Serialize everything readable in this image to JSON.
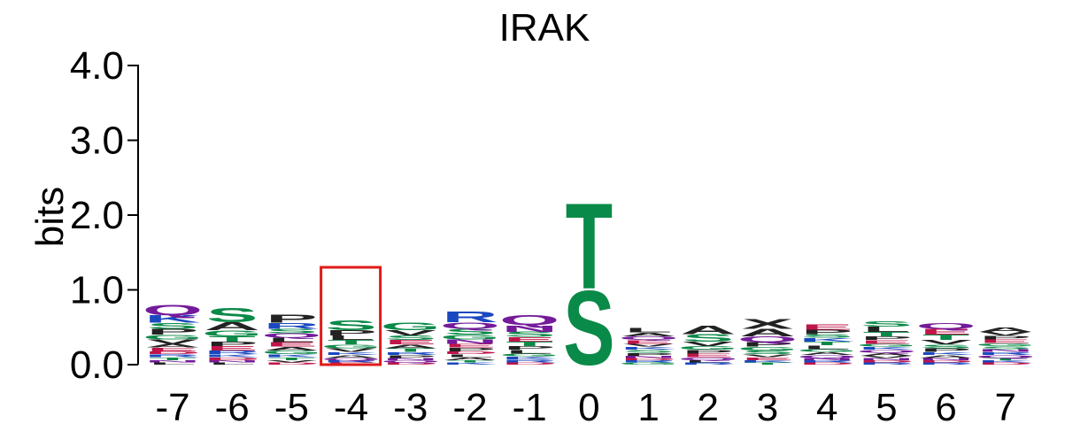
{
  "chart_data": {
    "type": "sequence-logo",
    "title": "IRAK",
    "ylabel": "bits",
    "xlabel": "",
    "ylim": [
      0,
      4.0
    ],
    "y_ticks": [
      {
        "value": 0,
        "label": "0.0"
      },
      {
        "value": 1,
        "label": "1.0"
      },
      {
        "value": 2,
        "label": "2.0"
      },
      {
        "value": 3,
        "label": "3.0"
      },
      {
        "value": 4,
        "label": "4.0"
      }
    ],
    "colors": {
      "polar": "#0a8a48",
      "hydrophobic": "#222222",
      "basic": "#1a48c0",
      "acidic": "#c0154a",
      "amide": "#741a9a",
      "highlight": "#e01b1b"
    },
    "highlight_position": "-4",
    "positions": [
      {
        "label": "-7",
        "letters": [
          {
            "aa": "Q",
            "bits": 0.14,
            "color": "amide"
          },
          {
            "aa": "K",
            "bits": 0.1,
            "color": "basic"
          },
          {
            "aa": "P",
            "bits": 0.08,
            "color": "hydrophobic"
          },
          {
            "aa": "S",
            "bits": 0.08,
            "color": "polar"
          },
          {
            "aa": "V",
            "bits": 0.06,
            "color": "hydrophobic"
          },
          {
            "aa": "G",
            "bits": 0.06,
            "color": "polar"
          },
          {
            "aa": "E",
            "bits": 0.05,
            "color": "acidic"
          },
          {
            "aa": "A",
            "bits": 0.05,
            "color": "hydrophobic"
          },
          {
            "aa": "T",
            "bits": 0.04,
            "color": "polar"
          },
          {
            "aa": "R",
            "bits": 0.04,
            "color": "basic"
          },
          {
            "aa": "D",
            "bits": 0.04,
            "color": "acidic"
          },
          {
            "aa": "L",
            "bits": 0.03,
            "color": "hydrophobic"
          },
          {
            "aa": "N",
            "bits": 0.03,
            "color": "amide"
          }
        ]
      },
      {
        "label": "-6",
        "letters": [
          {
            "aa": "S",
            "bits": 0.2,
            "color": "polar"
          },
          {
            "aa": "A",
            "bits": 0.11,
            "color": "hydrophobic"
          },
          {
            "aa": "G",
            "bits": 0.08,
            "color": "polar"
          },
          {
            "aa": "T",
            "bits": 0.07,
            "color": "polar"
          },
          {
            "aa": "E",
            "bits": 0.06,
            "color": "acidic"
          },
          {
            "aa": "P",
            "bits": 0.06,
            "color": "hydrophobic"
          },
          {
            "aa": "R",
            "bits": 0.05,
            "color": "basic"
          },
          {
            "aa": "D",
            "bits": 0.04,
            "color": "acidic"
          },
          {
            "aa": "K",
            "bits": 0.04,
            "color": "basic"
          },
          {
            "aa": "L",
            "bits": 0.03,
            "color": "hydrophobic"
          },
          {
            "aa": "N",
            "bits": 0.03,
            "color": "amide"
          }
        ]
      },
      {
        "label": "-5",
        "letters": [
          {
            "aa": "P",
            "bits": 0.11,
            "color": "hydrophobic"
          },
          {
            "aa": "R",
            "bits": 0.08,
            "color": "basic"
          },
          {
            "aa": "E",
            "bits": 0.06,
            "color": "acidic"
          },
          {
            "aa": "L",
            "bits": 0.06,
            "color": "hydrophobic"
          },
          {
            "aa": "Q",
            "bits": 0.06,
            "color": "amide"
          },
          {
            "aa": "S",
            "bits": 0.06,
            "color": "polar"
          },
          {
            "aa": "G",
            "bits": 0.05,
            "color": "polar"
          },
          {
            "aa": "A",
            "bits": 0.05,
            "color": "hydrophobic"
          },
          {
            "aa": "T",
            "bits": 0.04,
            "color": "polar"
          },
          {
            "aa": "K",
            "bits": 0.04,
            "color": "basic"
          },
          {
            "aa": "D",
            "bits": 0.03,
            "color": "acidic"
          },
          {
            "aa": "V",
            "bits": 0.03,
            "color": "hydrophobic"
          }
        ]
      },
      {
        "label": "-4",
        "letters": [
          {
            "aa": "S",
            "bits": 0.13,
            "color": "polar"
          },
          {
            "aa": "P",
            "bits": 0.07,
            "color": "hydrophobic"
          },
          {
            "aa": "T",
            "bits": 0.06,
            "color": "polar"
          },
          {
            "aa": "L",
            "bits": 0.06,
            "color": "hydrophobic"
          },
          {
            "aa": "V",
            "bits": 0.05,
            "color": "hydrophobic"
          },
          {
            "aa": "G",
            "bits": 0.05,
            "color": "polar"
          },
          {
            "aa": "A",
            "bits": 0.04,
            "color": "hydrophobic"
          },
          {
            "aa": "K",
            "bits": 0.04,
            "color": "basic"
          },
          {
            "aa": "E",
            "bits": 0.03,
            "color": "acidic"
          },
          {
            "aa": "R",
            "bits": 0.03,
            "color": "basic"
          },
          {
            "aa": "Q",
            "bits": 0.03,
            "color": "amide"
          }
        ]
      },
      {
        "label": "-3",
        "letters": [
          {
            "aa": "G",
            "bits": 0.1,
            "color": "polar"
          },
          {
            "aa": "V",
            "bits": 0.07,
            "color": "hydrophobic"
          },
          {
            "aa": "E",
            "bits": 0.06,
            "color": "acidic"
          },
          {
            "aa": "S",
            "bits": 0.06,
            "color": "polar"
          },
          {
            "aa": "T",
            "bits": 0.05,
            "color": "polar"
          },
          {
            "aa": "A",
            "bits": 0.05,
            "color": "hydrophobic"
          },
          {
            "aa": "P",
            "bits": 0.04,
            "color": "hydrophobic"
          },
          {
            "aa": "R",
            "bits": 0.04,
            "color": "basic"
          },
          {
            "aa": "D",
            "bits": 0.03,
            "color": "acidic"
          },
          {
            "aa": "Q",
            "bits": 0.03,
            "color": "amide"
          },
          {
            "aa": "N",
            "bits": 0.03,
            "color": "amide"
          }
        ]
      },
      {
        "label": "-2",
        "letters": [
          {
            "aa": "R",
            "bits": 0.15,
            "color": "basic"
          },
          {
            "aa": "Q",
            "bits": 0.09,
            "color": "amide"
          },
          {
            "aa": "S",
            "bits": 0.08,
            "color": "polar"
          },
          {
            "aa": "N",
            "bits": 0.06,
            "color": "amide"
          },
          {
            "aa": "G",
            "bits": 0.06,
            "color": "polar"
          },
          {
            "aa": "P",
            "bits": 0.05,
            "color": "hydrophobic"
          },
          {
            "aa": "E",
            "bits": 0.05,
            "color": "acidic"
          },
          {
            "aa": "A",
            "bits": 0.04,
            "color": "hydrophobic"
          },
          {
            "aa": "L",
            "bits": 0.04,
            "color": "hydrophobic"
          },
          {
            "aa": "D",
            "bits": 0.04,
            "color": "acidic"
          },
          {
            "aa": "K",
            "bits": 0.03,
            "color": "basic"
          },
          {
            "aa": "T",
            "bits": 0.03,
            "color": "polar"
          }
        ]
      },
      {
        "label": "-1",
        "letters": [
          {
            "aa": "Q",
            "bits": 0.13,
            "color": "amide"
          },
          {
            "aa": "N",
            "bits": 0.09,
            "color": "amide"
          },
          {
            "aa": "S",
            "bits": 0.07,
            "color": "polar"
          },
          {
            "aa": "T",
            "bits": 0.06,
            "color": "polar"
          },
          {
            "aa": "E",
            "bits": 0.06,
            "color": "acidic"
          },
          {
            "aa": "L",
            "bits": 0.05,
            "color": "hydrophobic"
          },
          {
            "aa": "P",
            "bits": 0.05,
            "color": "hydrophobic"
          },
          {
            "aa": "R",
            "bits": 0.04,
            "color": "basic"
          },
          {
            "aa": "K",
            "bits": 0.04,
            "color": "basic"
          },
          {
            "aa": "G",
            "bits": 0.04,
            "color": "polar"
          },
          {
            "aa": "D",
            "bits": 0.03,
            "color": "acidic"
          }
        ]
      },
      {
        "label": "0",
        "letters": [
          {
            "aa": "T",
            "bits": 1.18,
            "color": "polar"
          },
          {
            "aa": "S",
            "bits": 1.02,
            "color": "polar"
          }
        ]
      },
      {
        "label": "1",
        "letters": [
          {
            "aa": "L",
            "bits": 0.06,
            "color": "hydrophobic"
          },
          {
            "aa": "E",
            "bits": 0.05,
            "color": "acidic"
          },
          {
            "aa": "Q",
            "bits": 0.05,
            "color": "amide"
          },
          {
            "aa": "A",
            "bits": 0.05,
            "color": "hydrophobic"
          },
          {
            "aa": "P",
            "bits": 0.04,
            "color": "hydrophobic"
          },
          {
            "aa": "S",
            "bits": 0.04,
            "color": "polar"
          },
          {
            "aa": "K",
            "bits": 0.04,
            "color": "basic"
          },
          {
            "aa": "V",
            "bits": 0.04,
            "color": "hydrophobic"
          },
          {
            "aa": "G",
            "bits": 0.03,
            "color": "polar"
          },
          {
            "aa": "R",
            "bits": 0.03,
            "color": "basic"
          },
          {
            "aa": "D",
            "bits": 0.03,
            "color": "acidic"
          },
          {
            "aa": "N",
            "bits": 0.03,
            "color": "amide"
          }
        ]
      },
      {
        "label": "2",
        "letters": [
          {
            "aa": "A",
            "bits": 0.12,
            "color": "hydrophobic"
          },
          {
            "aa": "S",
            "bits": 0.1,
            "color": "polar"
          },
          {
            "aa": "V",
            "bits": 0.06,
            "color": "hydrophobic"
          },
          {
            "aa": "E",
            "bits": 0.05,
            "color": "acidic"
          },
          {
            "aa": "P",
            "bits": 0.05,
            "color": "hydrophobic"
          },
          {
            "aa": "G",
            "bits": 0.05,
            "color": "polar"
          },
          {
            "aa": "Q",
            "bits": 0.04,
            "color": "amide"
          },
          {
            "aa": "R",
            "bits": 0.03,
            "color": "basic"
          },
          {
            "aa": "L",
            "bits": 0.03,
            "color": "hydrophobic"
          }
        ]
      },
      {
        "label": "3",
        "letters": [
          {
            "aa": "X",
            "bits": 0.13,
            "color": "hydrophobic"
          },
          {
            "aa": "A",
            "bits": 0.1,
            "color": "hydrophobic"
          },
          {
            "aa": "Q",
            "bits": 0.08,
            "color": "amide"
          },
          {
            "aa": "P",
            "bits": 0.06,
            "color": "hydrophobic"
          },
          {
            "aa": "S",
            "bits": 0.05,
            "color": "polar"
          },
          {
            "aa": "G",
            "bits": 0.05,
            "color": "polar"
          },
          {
            "aa": "E",
            "bits": 0.04,
            "color": "acidic"
          },
          {
            "aa": "V",
            "bits": 0.04,
            "color": "hydrophobic"
          },
          {
            "aa": "T",
            "bits": 0.03,
            "color": "polar"
          },
          {
            "aa": "K",
            "bits": 0.03,
            "color": "basic"
          }
        ]
      },
      {
        "label": "4",
        "letters": [
          {
            "aa": "E",
            "bits": 0.07,
            "color": "acidic"
          },
          {
            "aa": "P",
            "bits": 0.06,
            "color": "hydrophobic"
          },
          {
            "aa": "L",
            "bits": 0.05,
            "color": "hydrophobic"
          },
          {
            "aa": "T",
            "bits": 0.05,
            "color": "polar"
          },
          {
            "aa": "K",
            "bits": 0.05,
            "color": "basic"
          },
          {
            "aa": "S",
            "bits": 0.05,
            "color": "polar"
          },
          {
            "aa": "Q",
            "bits": 0.04,
            "color": "amide"
          },
          {
            "aa": "A",
            "bits": 0.04,
            "color": "hydrophobic"
          },
          {
            "aa": "G",
            "bits": 0.04,
            "color": "polar"
          },
          {
            "aa": "D",
            "bits": 0.03,
            "color": "acidic"
          },
          {
            "aa": "R",
            "bits": 0.03,
            "color": "basic"
          },
          {
            "aa": "N",
            "bits": 0.03,
            "color": "amide"
          }
        ]
      },
      {
        "label": "5",
        "letters": [
          {
            "aa": "L",
            "bits": 0.07,
            "color": "hydrophobic"
          },
          {
            "aa": "S",
            "bits": 0.07,
            "color": "polar"
          },
          {
            "aa": "T",
            "bits": 0.06,
            "color": "polar"
          },
          {
            "aa": "E",
            "bits": 0.05,
            "color": "acidic"
          },
          {
            "aa": "P",
            "bits": 0.05,
            "color": "hydrophobic"
          },
          {
            "aa": "A",
            "bits": 0.04,
            "color": "hydrophobic"
          },
          {
            "aa": "Q",
            "bits": 0.04,
            "color": "amide"
          },
          {
            "aa": "K",
            "bits": 0.04,
            "color": "basic"
          },
          {
            "aa": "G",
            "bits": 0.04,
            "color": "polar"
          },
          {
            "aa": "R",
            "bits": 0.03,
            "color": "basic"
          },
          {
            "aa": "D",
            "bits": 0.03,
            "color": "acidic"
          },
          {
            "aa": "N",
            "bits": 0.03,
            "color": "amide"
          },
          {
            "aa": "V",
            "bits": 0.03,
            "color": "hydrophobic"
          }
        ]
      },
      {
        "label": "6",
        "letters": [
          {
            "aa": "E",
            "bits": 0.08,
            "color": "acidic"
          },
          {
            "aa": "Q",
            "bits": 0.08,
            "color": "amide"
          },
          {
            "aa": "T",
            "bits": 0.07,
            "color": "polar"
          },
          {
            "aa": "V",
            "bits": 0.06,
            "color": "hydrophobic"
          },
          {
            "aa": "P",
            "bits": 0.05,
            "color": "hydrophobic"
          },
          {
            "aa": "S",
            "bits": 0.05,
            "color": "polar"
          },
          {
            "aa": "A",
            "bits": 0.04,
            "color": "hydrophobic"
          },
          {
            "aa": "K",
            "bits": 0.04,
            "color": "basic"
          },
          {
            "aa": "R",
            "bits": 0.03,
            "color": "basic"
          },
          {
            "aa": "D",
            "bits": 0.03,
            "color": "acidic"
          },
          {
            "aa": "N",
            "bits": 0.03,
            "color": "amide"
          }
        ]
      },
      {
        "label": "7",
        "letters": [
          {
            "aa": "A",
            "bits": 0.06,
            "color": "hydrophobic"
          },
          {
            "aa": "E",
            "bits": 0.05,
            "color": "acidic"
          },
          {
            "aa": "P",
            "bits": 0.05,
            "color": "hydrophobic"
          },
          {
            "aa": "V",
            "bits": 0.05,
            "color": "hydrophobic"
          },
          {
            "aa": "Q",
            "bits": 0.04,
            "color": "amide"
          },
          {
            "aa": "R",
            "bits": 0.04,
            "color": "basic"
          },
          {
            "aa": "N",
            "bits": 0.04,
            "color": "amide"
          },
          {
            "aa": "S",
            "bits": 0.04,
            "color": "polar"
          },
          {
            "aa": "G",
            "bits": 0.04,
            "color": "polar"
          },
          {
            "aa": "D",
            "bits": 0.03,
            "color": "acidic"
          },
          {
            "aa": "K",
            "bits": 0.03,
            "color": "basic"
          },
          {
            "aa": "T",
            "bits": 0.03,
            "color": "polar"
          }
        ]
      }
    ]
  }
}
